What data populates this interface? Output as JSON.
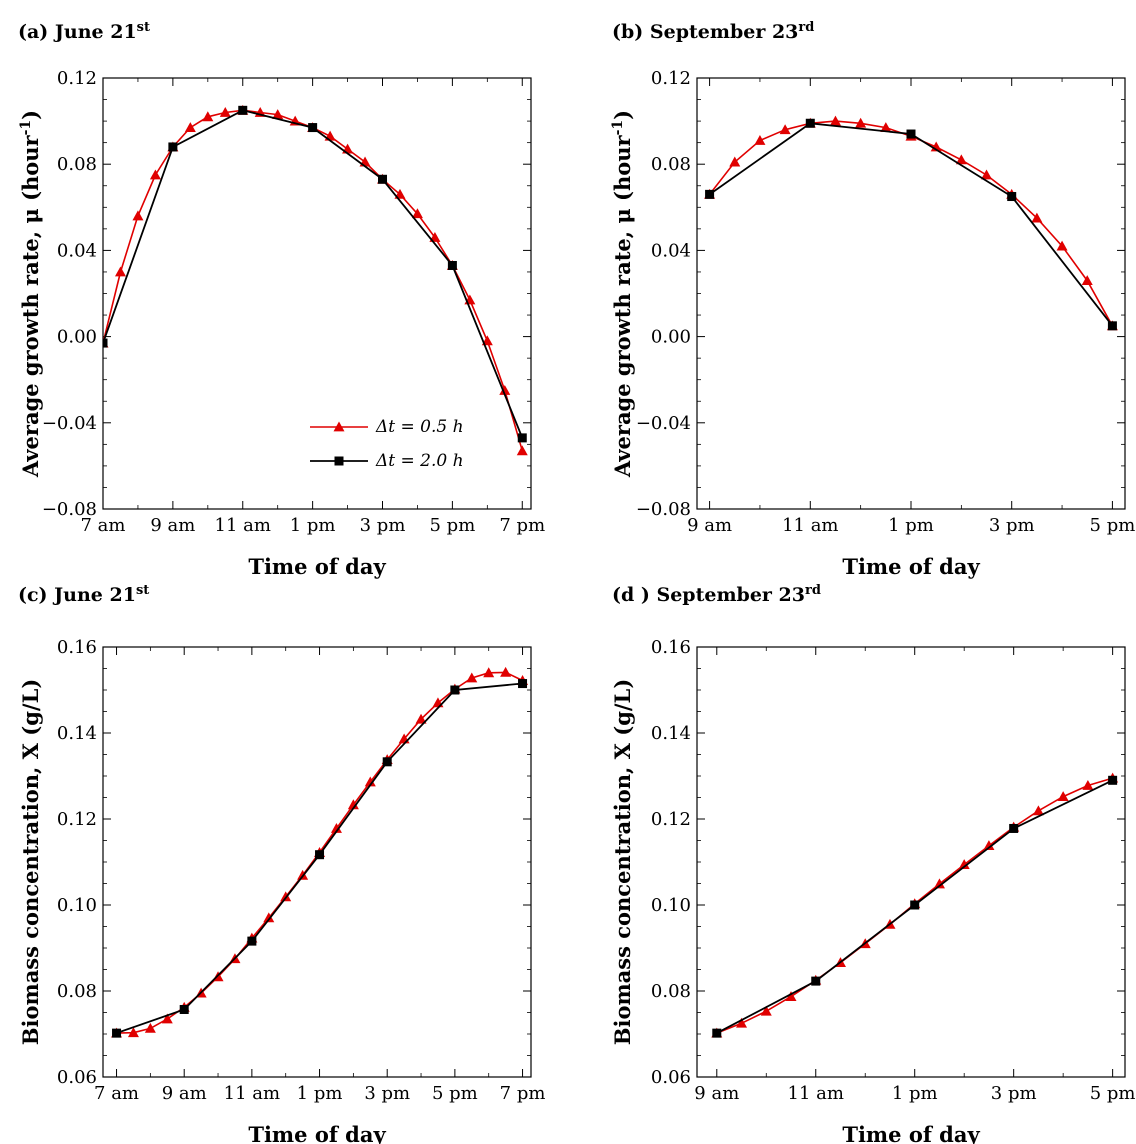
{
  "colors": {
    "series_dt05": "#e00000",
    "series_dt20": "#000000"
  },
  "chart_data": [
    {
      "id": "a",
      "type": "line",
      "panel_title": "(a) June 21",
      "panel_title_sup": "st",
      "xlabel": "Time of day",
      "ylabel": "Average growth rate, μ (hour",
      "ylabel_sup": "-1",
      "ylabel_close": ")",
      "xlim": [
        7,
        19.25
      ],
      "ylim": [
        -0.08,
        0.12
      ],
      "yticks": [
        -0.08,
        -0.04,
        0.0,
        0.04,
        0.08,
        0.12
      ],
      "ytick_labels": [
        "−0.08",
        "−0.04",
        "0.00",
        "0.04",
        "0.08",
        "0.12"
      ],
      "xticks": [
        7,
        9,
        11,
        13,
        15,
        17,
        19
      ],
      "xtick_labels": [
        "7 am",
        "9 am",
        "11 am",
        "1 pm",
        "3 pm",
        "5 pm",
        "7 pm"
      ],
      "legend": {
        "position": "lower-right",
        "entries": [
          "Δt = 0.5 h",
          "Δt = 2.0 h"
        ]
      },
      "series": [
        {
          "name": "Δt = 0.5 h",
          "x": [
            7,
            7.5,
            8,
            8.5,
            9,
            9.5,
            10,
            10.5,
            11,
            11.5,
            12,
            12.5,
            13,
            13.5,
            14,
            14.5,
            15,
            15.5,
            16,
            16.5,
            17,
            17.5,
            18,
            18.5,
            19
          ],
          "y": [
            -0.003,
            0.03,
            0.056,
            0.075,
            0.088,
            0.097,
            0.102,
            0.104,
            0.105,
            0.104,
            0.103,
            0.1,
            0.097,
            0.093,
            0.087,
            0.081,
            0.073,
            0.066,
            0.057,
            0.046,
            0.033,
            0.017,
            -0.002,
            -0.025,
            -0.053
          ]
        },
        {
          "name": "Δt = 2.0 h",
          "x": [
            7,
            9,
            11,
            13,
            15,
            17,
            19
          ],
          "y": [
            -0.003,
            0.088,
            0.105,
            0.097,
            0.073,
            0.033,
            -0.047
          ]
        }
      ]
    },
    {
      "id": "b",
      "type": "line",
      "panel_title": "(b) September 23",
      "panel_title_sup": "rd",
      "xlabel": "Time of day",
      "ylabel": "Average growth rate, μ (hour",
      "ylabel_sup": "-1",
      "ylabel_close": ")",
      "xlim": [
        8.75,
        17.25
      ],
      "ylim": [
        -0.08,
        0.12
      ],
      "yticks": [
        -0.08,
        -0.04,
        0.0,
        0.04,
        0.08,
        0.12
      ],
      "ytick_labels": [
        "−0.08",
        "−0.04",
        "0.00",
        "0.04",
        "0.08",
        "0.12"
      ],
      "xticks": [
        9,
        11,
        13,
        15,
        17
      ],
      "xtick_labels": [
        "9 am",
        "11 am",
        "1 pm",
        "3 pm",
        "5 pm"
      ],
      "series": [
        {
          "name": "Δt = 0.5 h",
          "x": [
            9,
            9.5,
            10,
            10.5,
            11,
            11.5,
            12,
            12.5,
            13,
            13.5,
            14,
            14.5,
            15,
            15.5,
            16,
            16.5,
            17
          ],
          "y": [
            0.066,
            0.081,
            0.091,
            0.096,
            0.099,
            0.1,
            0.099,
            0.097,
            0.093,
            0.088,
            0.082,
            0.075,
            0.066,
            0.055,
            0.042,
            0.026,
            0.005
          ]
        },
        {
          "name": "Δt = 2.0 h",
          "x": [
            9,
            11,
            13,
            15,
            17
          ],
          "y": [
            0.066,
            0.099,
            0.094,
            0.065,
            0.005
          ]
        }
      ]
    },
    {
      "id": "c",
      "type": "line",
      "panel_title": "(c) June 21",
      "panel_title_sup": "st",
      "xlabel": "Time of day",
      "ylabel": "Biomass concentration, X (g/L)",
      "xlim": [
        6.6,
        19.25
      ],
      "ylim": [
        0.06,
        0.16
      ],
      "yticks": [
        0.06,
        0.08,
        0.1,
        0.12,
        0.14,
        0.16
      ],
      "ytick_labels": [
        "0.06",
        "0.08",
        "0.10",
        "0.12",
        "0.14",
        "0.16"
      ],
      "xticks": [
        7,
        9,
        11,
        13,
        15,
        17,
        19
      ],
      "xtick_labels": [
        "7 am",
        "9 am",
        "11 am",
        "1 pm",
        "3 pm",
        "5 pm",
        "7 pm"
      ],
      "series": [
        {
          "name": "Δt = 0.5 h",
          "x": [
            7,
            7.5,
            8,
            8.5,
            9,
            9.5,
            10,
            10.5,
            11,
            11.5,
            12,
            12.5,
            13,
            13.5,
            14,
            14.5,
            15,
            15.5,
            16,
            16.5,
            17,
            17.5,
            18,
            18.5,
            19
          ],
          "y": [
            0.0702,
            0.0703,
            0.0713,
            0.0735,
            0.0762,
            0.0795,
            0.0833,
            0.0875,
            0.0923,
            0.097,
            0.1019,
            0.1069,
            0.1122,
            0.1178,
            0.1233,
            0.1286,
            0.1338,
            0.1386,
            0.1432,
            0.147,
            0.1502,
            0.1528,
            0.154,
            0.1541,
            0.1522
          ]
        },
        {
          "name": "Δt = 2.0 h",
          "x": [
            7,
            9,
            11,
            13,
            15,
            17,
            19
          ],
          "y": [
            0.0702,
            0.0757,
            0.0916,
            0.1117,
            0.1333,
            0.15,
            0.1515
          ]
        }
      ]
    },
    {
      "id": "d",
      "type": "line",
      "panel_title": "(d ) September 23",
      "panel_title_sup": "rd",
      "xlabel": "Time of day",
      "ylabel": "Biomass concentration, X (g/L)",
      "xlim": [
        8.6,
        17.25
      ],
      "ylim": [
        0.06,
        0.16
      ],
      "yticks": [
        0.06,
        0.08,
        0.1,
        0.12,
        0.14,
        0.16
      ],
      "ytick_labels": [
        "0.06",
        "0.08",
        "0.10",
        "0.12",
        "0.14",
        "0.16"
      ],
      "xticks": [
        9,
        11,
        13,
        15,
        17
      ],
      "xtick_labels": [
        "9 am",
        "11 am",
        "1 pm",
        "3 pm",
        "5 pm"
      ],
      "series": [
        {
          "name": "Δt = 0.5 h",
          "x": [
            9,
            9.5,
            10,
            10.5,
            11,
            11.5,
            12,
            12.5,
            13,
            13.5,
            14,
            14.5,
            15,
            15.5,
            16,
            16.5,
            17
          ],
          "y": [
            0.0702,
            0.0725,
            0.0753,
            0.0787,
            0.0825,
            0.0866,
            0.091,
            0.0955,
            0.1003,
            0.1049,
            0.1094,
            0.1138,
            0.1181,
            0.1219,
            0.1252,
            0.1278,
            0.1295
          ]
        },
        {
          "name": "Δt = 2.0 h",
          "x": [
            9,
            11,
            13,
            15,
            17
          ],
          "y": [
            0.0702,
            0.0823,
            0.1,
            0.1178,
            0.129
          ]
        }
      ]
    }
  ]
}
